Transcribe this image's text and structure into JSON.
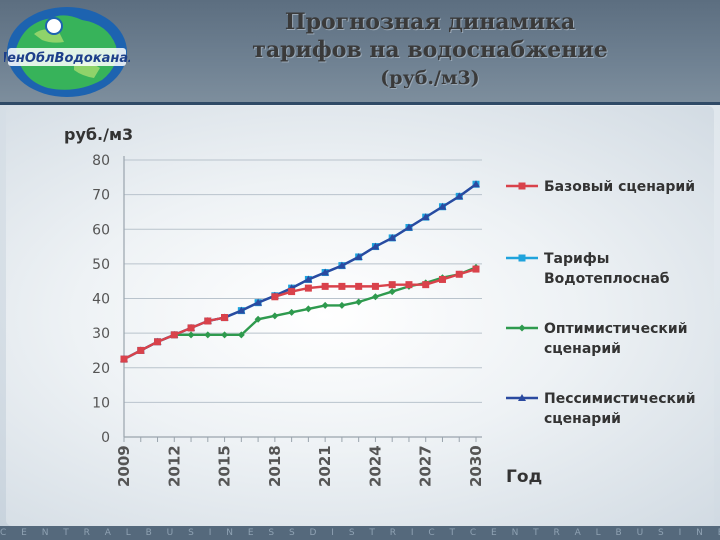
{
  "header": {
    "logo_text": "ЛенОблВодоканал",
    "title_line1": "Прогнозная динамика",
    "title_line2": "тарифов на водоснабжение",
    "title_line3": "(руб./м3)"
  },
  "footer": {
    "text": "C E N T R A L B U S I N E S S D I S T R I C T C E N T R A L B U S I N E S S D I S T R I C T C E N T R A"
  },
  "colors": {
    "base": "#d9424b",
    "vodotepl": "#1fa3dc",
    "optim": "#2e9a4e",
    "pessim": "#2a4aa0"
  },
  "chart_data": {
    "type": "line",
    "ylabel": "руб./м3",
    "xlabel": "Год",
    "ylim": [
      0,
      80
    ],
    "yticks": [
      0,
      10,
      20,
      30,
      40,
      50,
      60,
      70,
      80
    ],
    "x": [
      2009,
      2010,
      2011,
      2012,
      2013,
      2014,
      2015,
      2016,
      2017,
      2018,
      2019,
      2020,
      2021,
      2022,
      2023,
      2024,
      2025,
      2026,
      2027,
      2028,
      2029,
      2030
    ],
    "xtick_labels": [
      "2009",
      "2012",
      "2015",
      "2018",
      "2021",
      "2024",
      "2027",
      "2030"
    ],
    "grid": true,
    "legend_position": "right",
    "series": [
      {
        "name": "Базовый сценарий",
        "key": "base",
        "marker": "square",
        "values": [
          22.5,
          25,
          27.5,
          29.5,
          31.5,
          33.5,
          34.5,
          null,
          null,
          null,
          null,
          null,
          null,
          null,
          null,
          null,
          null,
          null,
          null,
          null,
          null,
          null
        ],
        "x2": [
          2015,
          2016,
          2017,
          2018,
          2019,
          2020,
          2021,
          2022,
          2023,
          2024,
          2025,
          2026,
          2027,
          2028,
          2029,
          2030
        ],
        "values2": [
          34.5,
          null,
          null,
          40.5,
          42.0,
          43.0,
          43.5,
          43.5,
          43.5,
          43.5,
          44.0,
          44.0,
          44.0,
          45.5,
          47.0,
          48.5
        ]
      },
      {
        "name": "Тарифы Водотеплоснаб",
        "key": "vodotepl",
        "marker": "square",
        "values": [
          22.5,
          25,
          27.5,
          29.5,
          31.5,
          33.5,
          34.5,
          36.5,
          38.8,
          40.8,
          43.0,
          45.5,
          47.5,
          49.5,
          52.0,
          55.0,
          57.5,
          60.5,
          63.5,
          66.5,
          69.5,
          73.0
        ]
      },
      {
        "name": "Оптимистический сценарий",
        "key": "optim",
        "marker": "diamond",
        "values": [
          22.5,
          25,
          27.5,
          29.5,
          29.5,
          29.5,
          29.5,
          29.5,
          34.0,
          35.0,
          36.0,
          37.0,
          38.0,
          38.0,
          39.0,
          40.5,
          42.0,
          43.5,
          44.5,
          46.0,
          47.0,
          49.0
        ]
      },
      {
        "name": "Пессимистический сценарий",
        "key": "pessim",
        "marker": "triangle",
        "values": [
          22.5,
          25,
          27.5,
          29.5,
          31.5,
          33.5,
          34.5,
          36.5,
          38.8,
          40.8,
          43.0,
          45.5,
          47.5,
          49.5,
          52.0,
          55.0,
          57.5,
          60.5,
          63.5,
          66.5,
          69.5,
          73.0
        ]
      }
    ],
    "legend": [
      {
        "key": "base",
        "label_lines": [
          "Базовый сценарий"
        ]
      },
      {
        "key": "vodotepl",
        "label_lines": [
          "Тарифы",
          "Водотеплоснаб"
        ]
      },
      {
        "key": "optim",
        "label_lines": [
          "Оптимистический",
          "сценарий"
        ]
      },
      {
        "key": "pessim",
        "label_lines": [
          "Пессимистический",
          "сценарий"
        ]
      }
    ]
  }
}
